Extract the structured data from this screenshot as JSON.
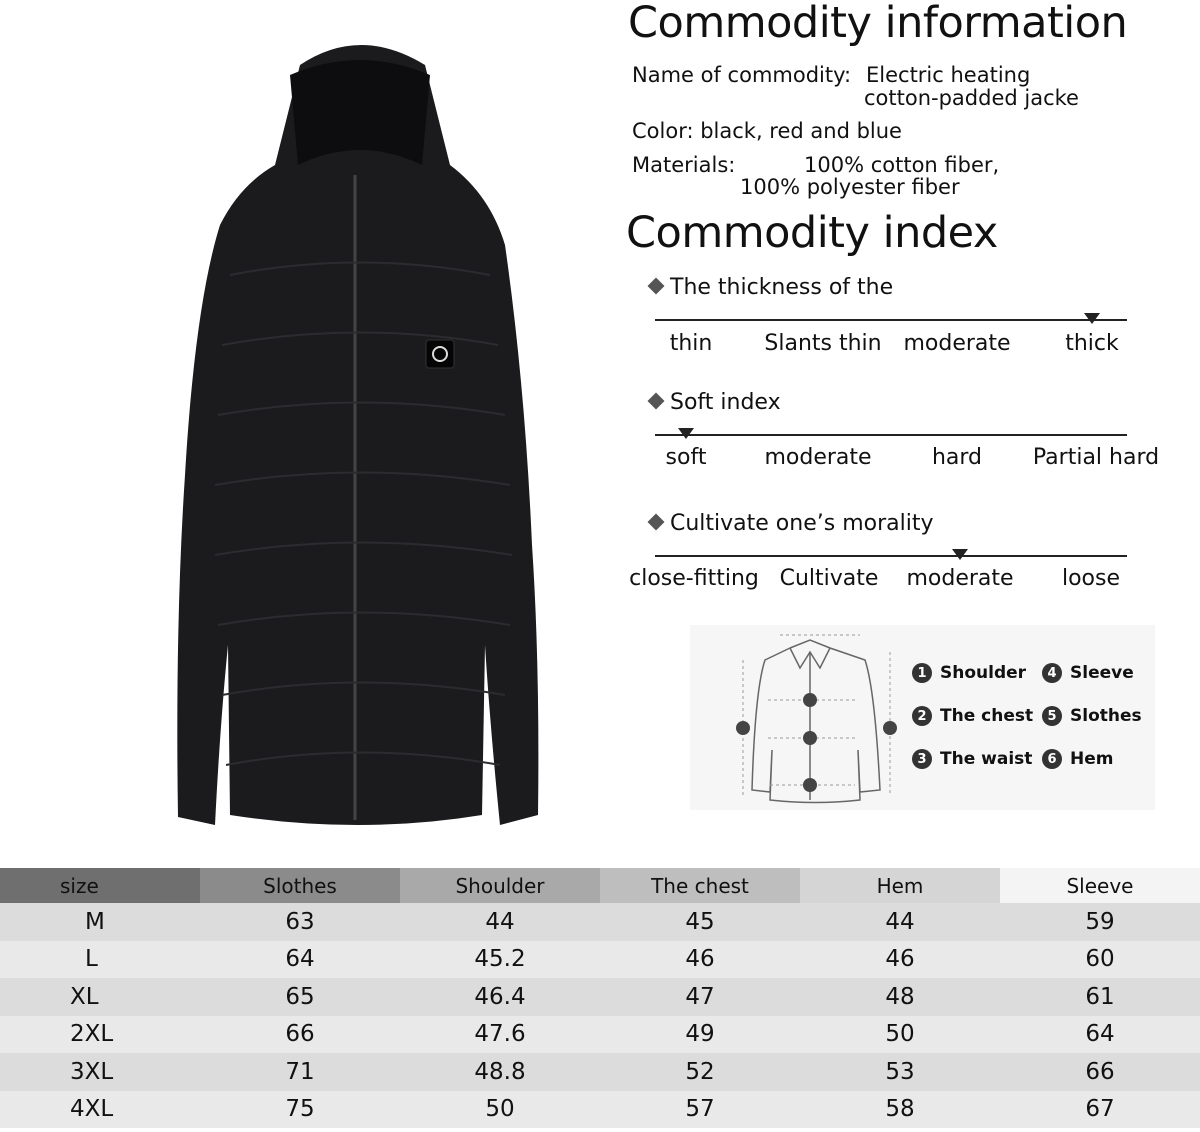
{
  "info": {
    "title": "Commodity information",
    "name_label": "Name of commodity:",
    "name_line1": "Electric heating",
    "name_line2": "cotton-padded jacke",
    "color": "Color: black, red and blue",
    "materials_label": "Materials:",
    "materials_line1": "100% cotton fiber,",
    "materials_line2": "100% polyester fiber"
  },
  "index": {
    "title": "Commodity index",
    "scales": [
      {
        "title": "The thickness of the",
        "labels": [
          "thin",
          "Slants thin",
          "moderate",
          "thick"
        ],
        "selected": 3
      },
      {
        "title": "Soft index",
        "labels": [
          "soft",
          "moderate",
          "hard",
          "Partial hard"
        ],
        "selected": 0
      },
      {
        "title": "Cultivate one’s morality",
        "labels": [
          "close-fitting",
          "Cultivate",
          "moderate",
          "loose"
        ],
        "selected": 2
      }
    ]
  },
  "diagram": {
    "legend": [
      {
        "n": "1",
        "label": "Shoulder"
      },
      {
        "n": "2",
        "label": "The chest"
      },
      {
        "n": "3",
        "label": "The waist"
      },
      {
        "n": "4",
        "label": "Sleeve"
      },
      {
        "n": "5",
        "label": "Slothes"
      },
      {
        "n": "6",
        "label": "Hem"
      }
    ]
  },
  "size_table": {
    "headers": [
      "size",
      "Slothes",
      "Shoulder",
      "The chest",
      "Hem",
      "Sleeve"
    ],
    "header_colors": [
      "#6f6f6f",
      "#8b8b8b",
      "#a9a9a9",
      "#bebebe",
      "#d5d5d5",
      "#f4f4f4"
    ],
    "rows": [
      [
        "M",
        "63",
        "44",
        "45",
        "44",
        "59"
      ],
      [
        "L",
        "64",
        "45.2",
        "46",
        "46",
        "60"
      ],
      [
        "XL",
        "65",
        "46.4",
        "47",
        "48",
        "61"
      ],
      [
        "2XL",
        "66",
        "47.6",
        "49",
        "50",
        "64"
      ],
      [
        "3XL",
        "71",
        "48.8",
        "52",
        "53",
        "66"
      ],
      [
        "4XL",
        "75",
        "50",
        "57",
        "58",
        "67"
      ]
    ]
  }
}
